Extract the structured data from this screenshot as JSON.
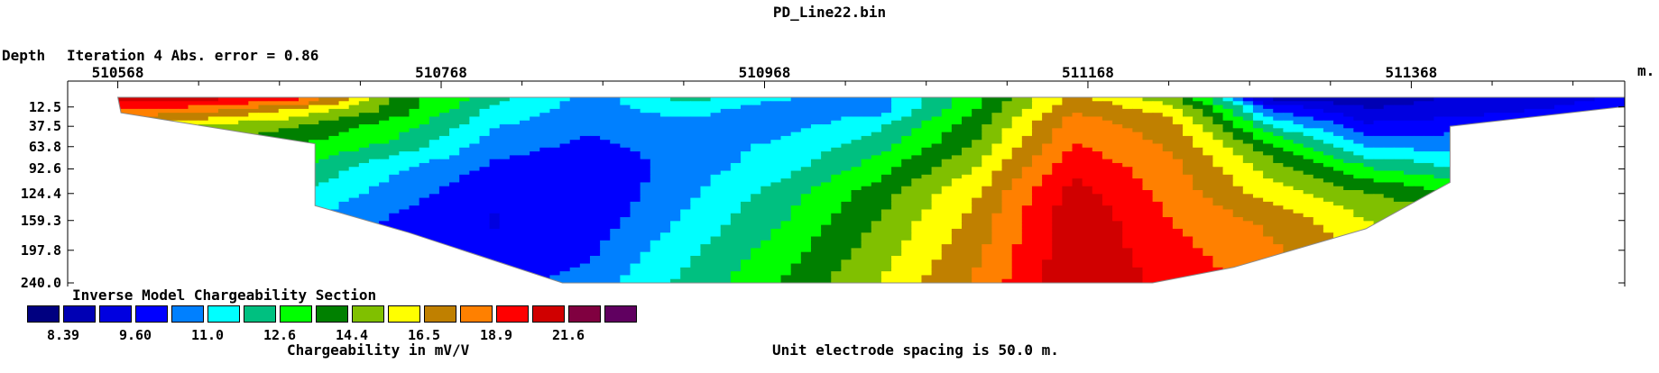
{
  "chart_data": {
    "type": "heatmap",
    "title": "PD_Line22.bin",
    "subtitle": "Iteration 4 Abs. error = 0.86",
    "section_title": "Inverse Model Chargeability Section",
    "ylabel": "Depth",
    "x_unit": "m.",
    "x_tick_labels": [
      "510568",
      "510768",
      "510968",
      "511168",
      "511368"
    ],
    "x_ticks": [
      510568,
      510768,
      510968,
      511168,
      511368
    ],
    "xlim": [
      510537,
      511500
    ],
    "y_tick_labels": [
      "12.5",
      "37.5",
      "63.8",
      "92.6",
      "124.4",
      "159.3",
      "197.8",
      "240.0"
    ],
    "y_ticks": [
      12.5,
      37.5,
      63.8,
      92.6,
      124.4,
      159.3,
      197.8,
      240.0
    ],
    "ylim": [
      0,
      240
    ],
    "colorbar_label": "Chargeability in mV/V",
    "colorbar_tick_labels": [
      "8.39",
      "9.60",
      "11.0",
      "12.6",
      "14.4",
      "16.5",
      "18.9",
      "21.6"
    ],
    "colorbar_colors": [
      "#000080",
      "#0000b4",
      "#0000e0",
      "#0000ff",
      "#0080ff",
      "#00ffff",
      "#00c080",
      "#00ff00",
      "#008000",
      "#80c000",
      "#ffff00",
      "#c08000",
      "#ff8000",
      "#ff0000",
      "#d00000",
      "#800040",
      "#600060"
    ],
    "footnote": "Unit electrode spacing is 50.0 m.",
    "section_outline": [
      [
        510568,
        0
      ],
      [
        511500,
        0
      ],
      [
        511500,
        12
      ],
      [
        511392,
        37.5
      ],
      [
        511392,
        110
      ],
      [
        511340,
        170
      ],
      [
        511258,
        220
      ],
      [
        511208,
        240
      ],
      [
        510843,
        240
      ],
      [
        510748,
        175
      ],
      [
        510690,
        140
      ],
      [
        510690,
        60
      ],
      [
        510650,
        47
      ],
      [
        510570,
        20
      ]
    ],
    "model": {
      "x": [
        510568,
        510620,
        510680,
        510740,
        510800,
        510860,
        510920,
        510980,
        511040,
        511100,
        511160,
        511220,
        511280,
        511340,
        511400,
        511460,
        511500
      ],
      "z": [
        0,
        15,
        35,
        60,
        90,
        125,
        160,
        200,
        240
      ],
      "values": [
        [
          21.8,
          21.6,
          20.0,
          14.5,
          12.6,
          11.0,
          12.5,
          11.5,
          11.0,
          13.5,
          17.5,
          15.0,
          9.0,
          8.8,
          9.4,
          9.7,
          10.0
        ],
        [
          19.5,
          19.0,
          17.0,
          14.5,
          12.0,
          11.0,
          11.8,
          10.8,
          11.0,
          14.0,
          18.0,
          16.5,
          10.5,
          9.3,
          9.6,
          10.0,
          10.3
        ],
        [
          17.0,
          16.0,
          15.0,
          13.5,
          11.5,
          10.8,
          11.0,
          11.0,
          12.0,
          14.5,
          19.0,
          17.5,
          12.0,
          10.0,
          10.3,
          10.5,
          10.7
        ],
        [
          15.5,
          15.0,
          14.0,
          12.8,
          11.0,
          10.5,
          11.0,
          11.5,
          12.6,
          15.0,
          19.5,
          18.0,
          14.0,
          11.0,
          11.0,
          11.0,
          11.0
        ],
        [
          15.0,
          14.5,
          13.0,
          11.5,
          10.5,
          10.0,
          11.0,
          11.8,
          13.5,
          16.0,
          20.5,
          18.6,
          15.5,
          13.0,
          12.0,
          12.0,
          12.0
        ],
        [
          15.0,
          14.0,
          12.0,
          11.0,
          10.0,
          10.0,
          11.2,
          12.6,
          14.5,
          17.0,
          21.5,
          19.0,
          16.5,
          15.0,
          14.0,
          14.0,
          14.0
        ],
        [
          15.0,
          13.0,
          11.5,
          10.5,
          9.9,
          10.2,
          11.5,
          13.0,
          15.0,
          17.5,
          22.0,
          19.5,
          18.0,
          16.0,
          15.0,
          15.0,
          15.0
        ],
        [
          15.0,
          12.5,
          11.5,
          10.5,
          10.0,
          10.5,
          12.0,
          13.5,
          15.5,
          18.0,
          22.0,
          20.0,
          18.5,
          17.0,
          16.0,
          16.0,
          16.0
        ],
        [
          15.0,
          12.5,
          11.5,
          10.8,
          10.2,
          11.0,
          12.4,
          14.0,
          16.0,
          18.5,
          22.0,
          20.5,
          19.0,
          17.5,
          16.5,
          16.5,
          16.5
        ]
      ]
    }
  }
}
